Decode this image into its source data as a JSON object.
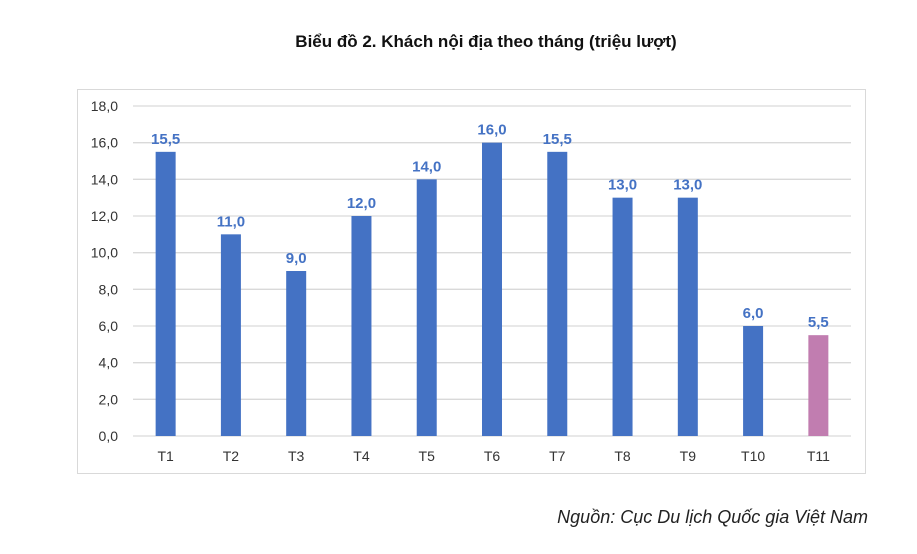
{
  "chart_data": {
    "type": "bar",
    "title": "Biểu đồ 2. Khách nội địa theo tháng (triệu lượt)",
    "categories": [
      "T1",
      "T2",
      "T3",
      "T4",
      "T5",
      "T6",
      "T7",
      "T8",
      "T9",
      "T10",
      "T11"
    ],
    "values": [
      15.5,
      11.0,
      9.0,
      12.0,
      14.0,
      16.0,
      15.5,
      13.0,
      13.0,
      6.0,
      5.5
    ],
    "data_labels": [
      "15,5",
      "11,0",
      "9,0",
      "12,0",
      "14,0",
      "16,0",
      "15,5",
      "13,0",
      "13,0",
      "6,0",
      "5,5"
    ],
    "yticks": [
      "0,0",
      "2,0",
      "4,0",
      "6,0",
      "8,0",
      "10,0",
      "12,0",
      "14,0",
      "16,0",
      "18,0"
    ],
    "ylim": [
      0,
      18
    ],
    "grid": true,
    "legend": "none",
    "colors": {
      "bar": "#4472c4",
      "highlight_bar": "#c17db0",
      "label": "#4472c4",
      "grid": "#d9d9d9"
    },
    "highlight_index": 10
  },
  "source": "Nguồn: Cục Du lịch Quốc gia Việt Nam"
}
